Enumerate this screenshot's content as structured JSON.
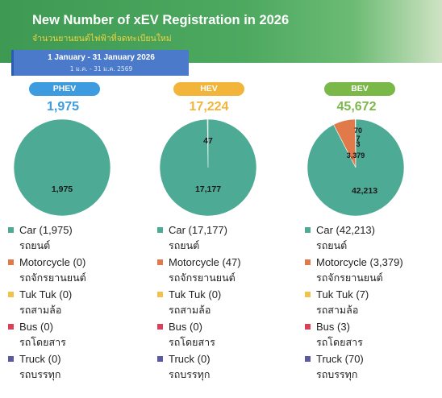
{
  "header": {
    "title": "New Number of xEV Registration in 2026",
    "subtitle": "จำนวนยานยนต์ไฟฟ้าที่จดทะเบียนใหม่",
    "date_en": "1 January - 31 January 2026",
    "date_th": "1 ม.ค. - 31 ม.ค. 2569"
  },
  "colors": {
    "car": "#4daa94",
    "motorcycle": "#e07a4a",
    "tuk_tuk": "#f2c14e",
    "bus": "#d9405a",
    "truck": "#5a5aa0",
    "phev": "#3d9be0",
    "hev": "#f2b53a",
    "bev": "#7ab84a"
  },
  "chart_data": [
    {
      "type": "pie",
      "pill_label": "PHEV",
      "total_label": "1,975",
      "categories": [
        "Car",
        "Motorcycle",
        "Tuk Tuk",
        "Bus",
        "Truck"
      ],
      "values": [
        1975,
        0,
        0,
        0,
        0
      ],
      "slice_labels": [
        "1,975",
        "",
        "",
        "",
        ""
      ],
      "legend": [
        {
          "en": "Car",
          "count": "(1,975)",
          "th": "รถยนต์"
        },
        {
          "en": "Motorcycle",
          "count": "(0)",
          "th": "รถจักรยานยนต์"
        },
        {
          "en": "Tuk Tuk",
          "count": "(0)",
          "th": "รถสามล้อ"
        },
        {
          "en": "Bus",
          "count": "(0)",
          "th": "รถโดยสาร"
        },
        {
          "en": "Truck",
          "count": "(0)",
          "th": "รถบรรทุก"
        }
      ]
    },
    {
      "type": "pie",
      "pill_label": "HEV",
      "total_label": "17,224",
      "categories": [
        "Car",
        "Motorcycle",
        "Tuk Tuk",
        "Bus",
        "Truck"
      ],
      "values": [
        17177,
        47,
        0,
        0,
        0
      ],
      "slice_labels": [
        "17,177",
        "47",
        "",
        "",
        ""
      ],
      "legend": [
        {
          "en": "Car",
          "count": "(17,177)",
          "th": "รถยนต์"
        },
        {
          "en": "Motorcycle",
          "count": "(47)",
          "th": "รถจักรยานยนต์"
        },
        {
          "en": "Tuk Tuk",
          "count": "(0)",
          "th": "รถสามล้อ"
        },
        {
          "en": "Bus",
          "count": "(0)",
          "th": "รถโดยสาร"
        },
        {
          "en": "Truck",
          "count": "(0)",
          "th": "รถบรรทุก"
        }
      ]
    },
    {
      "type": "pie",
      "pill_label": "BEV",
      "total_label": "45,672",
      "categories": [
        "Car",
        "Motorcycle",
        "Tuk Tuk",
        "Bus",
        "Truck"
      ],
      "values": [
        42213,
        3379,
        7,
        3,
        70
      ],
      "slice_labels": [
        "42,213",
        "3,379",
        "7",
        "3",
        "70"
      ],
      "legend": [
        {
          "en": "Car",
          "count": "(42,213)",
          "th": "รถยนต์"
        },
        {
          "en": "Motorcycle",
          "count": "(3,379)",
          "th": "รถจักรยานยนต์"
        },
        {
          "en": "Tuk Tuk",
          "count": "(7)",
          "th": "รถสามล้อ"
        },
        {
          "en": "Bus",
          "count": "(3)",
          "th": "รถโดยสาร"
        },
        {
          "en": "Truck",
          "count": "(70)",
          "th": "รถบรรทุก"
        }
      ]
    }
  ]
}
